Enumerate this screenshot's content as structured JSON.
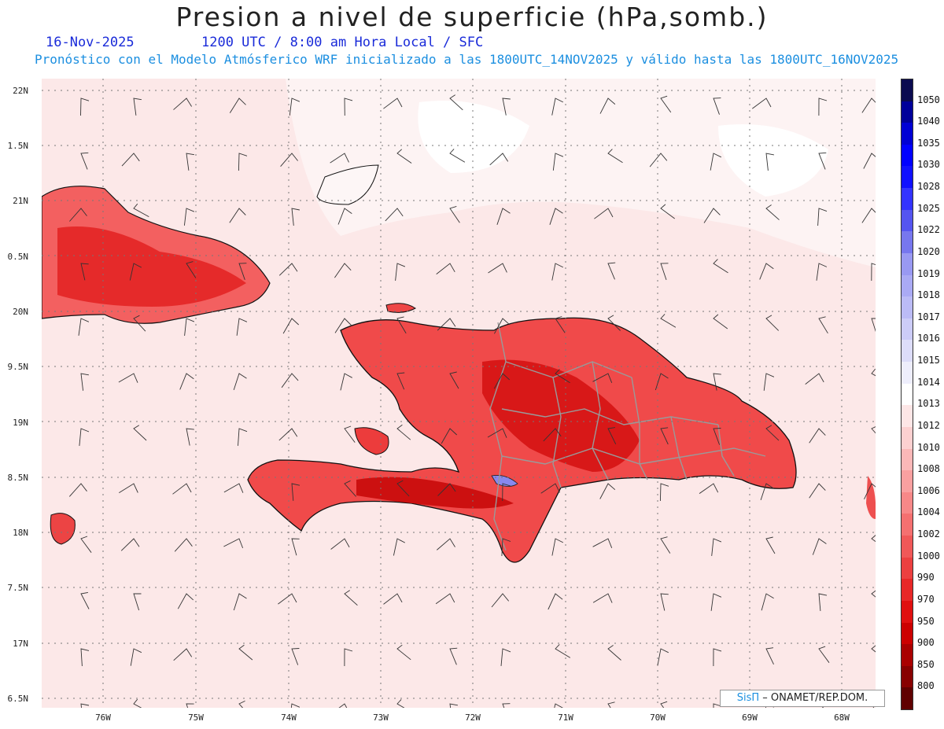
{
  "header": {
    "title": "Presion a nivel de superficie (hPa,somb.)",
    "date": "16-Nov-2025",
    "time": "1200 UTC / 8:00 am Hora Local / SFC",
    "forecast": "Pronóstico con el Modelo Atmósferico WRF inicializado a las 1800UTC_14NOV2025 y válido hasta las  1800UTC_16NOV2025"
  },
  "map": {
    "lat_labels": [
      "22N",
      "1.5N",
      "21N",
      "0.5N",
      "20N",
      "9.5N",
      "19N",
      "8.5N",
      "18N",
      "7.5N",
      "17N",
      "6.5N"
    ],
    "lon_labels": [
      "76W",
      "75W",
      "74W",
      "73W",
      "72W",
      "71W",
      "70W",
      "69W",
      "68W"
    ]
  },
  "colorbar": {
    "levels": [
      "1050",
      "1040",
      "1035",
      "1030",
      "1028",
      "1025",
      "1022",
      "1020",
      "1019",
      "1018",
      "1017",
      "1016",
      "1015",
      "1014",
      "1013",
      "1012",
      "1010",
      "1008",
      "1006",
      "1004",
      "1002",
      "1000",
      "990",
      "970",
      "950",
      "900",
      "850",
      "800"
    ],
    "colors": [
      "#0b0b50",
      "#00009a",
      "#0000d4",
      "#0000ff",
      "#1010ff",
      "#3333ff",
      "#5555f0",
      "#7777ee",
      "#9999f2",
      "#aaaaf4",
      "#bbbbf6",
      "#ccccf8",
      "#ddddfa",
      "#eeeefc",
      "#ffffff",
      "#fde6e6",
      "#fcd0d0",
      "#fbb8b8",
      "#f9a0a0",
      "#f78888",
      "#f47070",
      "#f05858",
      "#ec4040",
      "#e82828",
      "#e01010",
      "#cc0000",
      "#aa0000",
      "#880000",
      "#600000"
    ]
  },
  "credit": {
    "brand": "SisΠ",
    "text": "– ONAMET/REP.DOM."
  }
}
